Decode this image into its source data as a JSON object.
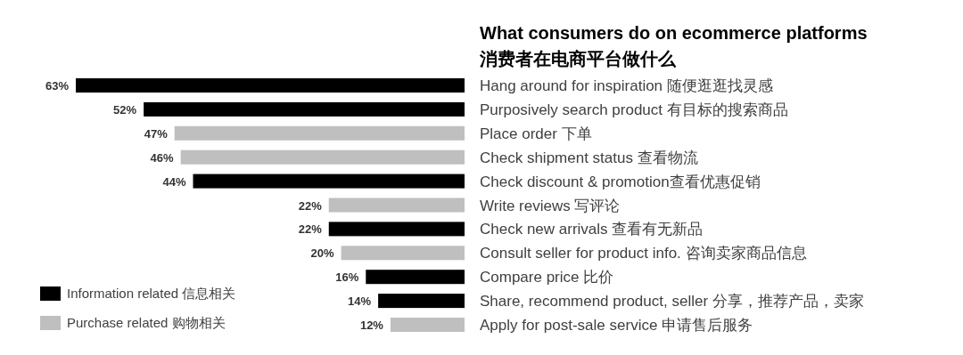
{
  "chart_data": {
    "type": "bar",
    "orientation": "horizontal",
    "legend": "bottom left",
    "title": "What consumers do on ecommerce platforms",
    "subtitle": "消费者在电商平台做什么",
    "categories": [
      "Hang around for inspiration 随便逛逛找灵感",
      "Purposively search product 有目标的搜索商品",
      "Place order 下单",
      "Check shipment status 查看物流",
      "Check discount & promotion查看优惠促销",
      "Write reviews 写评论",
      "Check new arrivals 查看有无新品",
      "Consult seller for product info. 咨询卖家商品信息",
      "Compare price 比价",
      "Share, recommend product, seller 分享，推荐产品，卖家",
      "Apply for post-sale service 申请售后服务"
    ],
    "series": [
      {
        "name": "Information related 信息相关",
        "color": "#000000",
        "values": [
          63,
          52,
          null,
          null,
          44,
          null,
          22,
          null,
          16,
          14,
          null
        ],
        "value_labels": [
          "63%",
          "52%",
          null,
          null,
          "44%",
          null,
          "22%",
          null,
          "16%",
          "14%",
          null
        ]
      },
      {
        "name": "Purchase related 购物相关",
        "color": "#bfbfbf",
        "values": [
          null,
          null,
          47,
          46,
          null,
          22,
          null,
          20,
          null,
          null,
          12
        ],
        "value_labels": [
          null,
          null,
          "47%",
          "46%",
          null,
          "22%",
          null,
          "20%",
          null,
          null,
          "12%"
        ]
      }
    ]
  }
}
